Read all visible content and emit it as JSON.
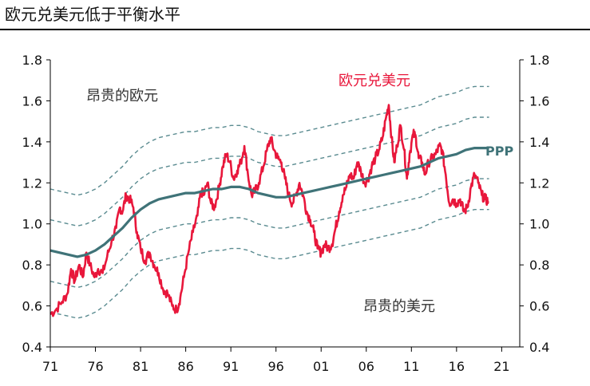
{
  "title": "欧元兑美元低于平衡水平",
  "chart_data": {
    "type": "line",
    "x_ticks": [
      "71",
      "76",
      "81",
      "86",
      "91",
      "96",
      "01",
      "06",
      "11",
      "16",
      "21"
    ],
    "xlim": [
      1971,
      2023
    ],
    "ylim": [
      0.4,
      1.8
    ],
    "y_ticks": [
      "0.4",
      "0.6",
      "0.8",
      "1.0",
      "1.2",
      "1.4",
      "1.6",
      "1.8"
    ],
    "annotations": {
      "expensive_euro": "昂贵的欧元",
      "expensive_dollar": "昂贵的美元",
      "eurusd_label": "欧元兑美元",
      "ppp_label": "PPP"
    },
    "colors": {
      "eurusd": "#e8173b",
      "ppp": "#3f7378",
      "bands": "#5a8b90"
    },
    "series": [
      {
        "name": "欧元兑美元",
        "points": [
          [
            1971.0,
            0.56
          ],
          [
            1971.6,
            0.58
          ],
          [
            1972.3,
            0.62
          ],
          [
            1972.9,
            0.66
          ],
          [
            1973.3,
            0.78
          ],
          [
            1973.7,
            0.72
          ],
          [
            1974.2,
            0.8
          ],
          [
            1974.6,
            0.74
          ],
          [
            1975.0,
            0.86
          ],
          [
            1975.4,
            0.8
          ],
          [
            1975.9,
            0.74
          ],
          [
            1976.3,
            0.78
          ],
          [
            1976.8,
            0.76
          ],
          [
            1977.3,
            0.84
          ],
          [
            1977.8,
            0.92
          ],
          [
            1978.3,
            0.98
          ],
          [
            1978.7,
            1.08
          ],
          [
            1979.0,
            1.06
          ],
          [
            1979.4,
            1.14
          ],
          [
            1979.8,
            1.12
          ],
          [
            1980.2,
            1.08
          ],
          [
            1980.6,
            0.96
          ],
          [
            1981.0,
            0.88
          ],
          [
            1981.5,
            0.82
          ],
          [
            1982.0,
            0.86
          ],
          [
            1982.5,
            0.8
          ],
          [
            1983.0,
            0.76
          ],
          [
            1983.5,
            0.68
          ],
          [
            1984.0,
            0.66
          ],
          [
            1984.5,
            0.6
          ],
          [
            1985.0,
            0.58
          ],
          [
            1985.4,
            0.64
          ],
          [
            1985.8,
            0.74
          ],
          [
            1986.3,
            0.86
          ],
          [
            1986.8,
            0.96
          ],
          [
            1987.3,
            1.04
          ],
          [
            1987.7,
            1.16
          ],
          [
            1988.0,
            1.14
          ],
          [
            1988.4,
            1.2
          ],
          [
            1988.8,
            1.1
          ],
          [
            1989.2,
            1.08
          ],
          [
            1989.7,
            1.18
          ],
          [
            1990.1,
            1.28
          ],
          [
            1990.5,
            1.34
          ],
          [
            1990.9,
            1.3
          ],
          [
            1991.3,
            1.22
          ],
          [
            1991.7,
            1.26
          ],
          [
            1992.1,
            1.3
          ],
          [
            1992.5,
            1.38
          ],
          [
            1992.9,
            1.24
          ],
          [
            1993.3,
            1.14
          ],
          [
            1993.7,
            1.16
          ],
          [
            1994.1,
            1.2
          ],
          [
            1994.6,
            1.28
          ],
          [
            1995.0,
            1.36
          ],
          [
            1995.4,
            1.42
          ],
          [
            1995.8,
            1.36
          ],
          [
            1996.2,
            1.32
          ],
          [
            1996.6,
            1.3
          ],
          [
            1997.0,
            1.22
          ],
          [
            1997.4,
            1.14
          ],
          [
            1997.8,
            1.1
          ],
          [
            1998.2,
            1.14
          ],
          [
            1998.6,
            1.2
          ],
          [
            1999.0,
            1.14
          ],
          [
            1999.4,
            1.06
          ],
          [
            1999.8,
            1.02
          ],
          [
            2000.2,
            0.96
          ],
          [
            2000.6,
            0.88
          ],
          [
            2001.0,
            0.86
          ],
          [
            2001.4,
            0.9
          ],
          [
            2001.8,
            0.88
          ],
          [
            2002.2,
            0.9
          ],
          [
            2002.6,
            0.98
          ],
          [
            2003.0,
            1.06
          ],
          [
            2003.4,
            1.14
          ],
          [
            2003.8,
            1.18
          ],
          [
            2004.2,
            1.24
          ],
          [
            2004.6,
            1.22
          ],
          [
            2005.0,
            1.3
          ],
          [
            2005.4,
            1.26
          ],
          [
            2005.8,
            1.2
          ],
          [
            2006.2,
            1.22
          ],
          [
            2006.6,
            1.28
          ],
          [
            2007.0,
            1.32
          ],
          [
            2007.4,
            1.36
          ],
          [
            2007.8,
            1.42
          ],
          [
            2008.2,
            1.52
          ],
          [
            2008.5,
            1.58
          ],
          [
            2008.8,
            1.42
          ],
          [
            2009.1,
            1.3
          ],
          [
            2009.4,
            1.38
          ],
          [
            2009.8,
            1.48
          ],
          [
            2010.2,
            1.36
          ],
          [
            2010.5,
            1.22
          ],
          [
            2010.8,
            1.34
          ],
          [
            2011.2,
            1.44
          ],
          [
            2011.5,
            1.42
          ],
          [
            2011.8,
            1.32
          ],
          [
            2012.2,
            1.3
          ],
          [
            2012.5,
            1.24
          ],
          [
            2012.9,
            1.3
          ],
          [
            2013.3,
            1.32
          ],
          [
            2013.7,
            1.34
          ],
          [
            2014.1,
            1.38
          ],
          [
            2014.4,
            1.36
          ],
          [
            2014.8,
            1.24
          ],
          [
            2015.2,
            1.1
          ],
          [
            2015.6,
            1.12
          ],
          [
            2016.0,
            1.1
          ],
          [
            2016.4,
            1.12
          ],
          [
            2016.8,
            1.06
          ],
          [
            2017.2,
            1.08
          ],
          [
            2017.6,
            1.18
          ],
          [
            2018.0,
            1.24
          ],
          [
            2018.4,
            1.2
          ],
          [
            2018.8,
            1.14
          ],
          [
            2019.2,
            1.12
          ],
          [
            2019.5,
            1.11
          ]
        ]
      },
      {
        "name": "PPP",
        "points": [
          [
            1971.0,
            0.87
          ],
          [
            1972.0,
            0.86
          ],
          [
            1973.0,
            0.85
          ],
          [
            1974.0,
            0.84
          ],
          [
            1975.0,
            0.85
          ],
          [
            1976.0,
            0.87
          ],
          [
            1977.0,
            0.9
          ],
          [
            1978.0,
            0.94
          ],
          [
            1979.0,
            0.98
          ],
          [
            1980.0,
            1.03
          ],
          [
            1981.0,
            1.07
          ],
          [
            1982.0,
            1.1
          ],
          [
            1983.0,
            1.12
          ],
          [
            1984.0,
            1.13
          ],
          [
            1985.0,
            1.14
          ],
          [
            1986.0,
            1.15
          ],
          [
            1987.0,
            1.15
          ],
          [
            1988.0,
            1.16
          ],
          [
            1989.0,
            1.17
          ],
          [
            1990.0,
            1.17
          ],
          [
            1991.0,
            1.18
          ],
          [
            1992.0,
            1.18
          ],
          [
            1993.0,
            1.17
          ],
          [
            1994.0,
            1.15
          ],
          [
            1995.0,
            1.14
          ],
          [
            1996.0,
            1.13
          ],
          [
            1997.0,
            1.13
          ],
          [
            1998.0,
            1.14
          ],
          [
            1999.0,
            1.15
          ],
          [
            2000.0,
            1.16
          ],
          [
            2001.0,
            1.17
          ],
          [
            2002.0,
            1.18
          ],
          [
            2003.0,
            1.19
          ],
          [
            2004.0,
            1.2
          ],
          [
            2005.0,
            1.21
          ],
          [
            2006.0,
            1.22
          ],
          [
            2007.0,
            1.23
          ],
          [
            2008.0,
            1.24
          ],
          [
            2009.0,
            1.25
          ],
          [
            2010.0,
            1.26
          ],
          [
            2011.0,
            1.27
          ],
          [
            2012.0,
            1.28
          ],
          [
            2013.0,
            1.3
          ],
          [
            2014.0,
            1.32
          ],
          [
            2015.0,
            1.33
          ],
          [
            2016.0,
            1.34
          ],
          [
            2017.0,
            1.36
          ],
          [
            2018.0,
            1.37
          ],
          [
            2019.0,
            1.37
          ],
          [
            2019.6,
            1.37
          ]
        ]
      }
    ],
    "band_offsets": [
      -0.3,
      -0.15,
      0.15,
      0.3
    ]
  }
}
